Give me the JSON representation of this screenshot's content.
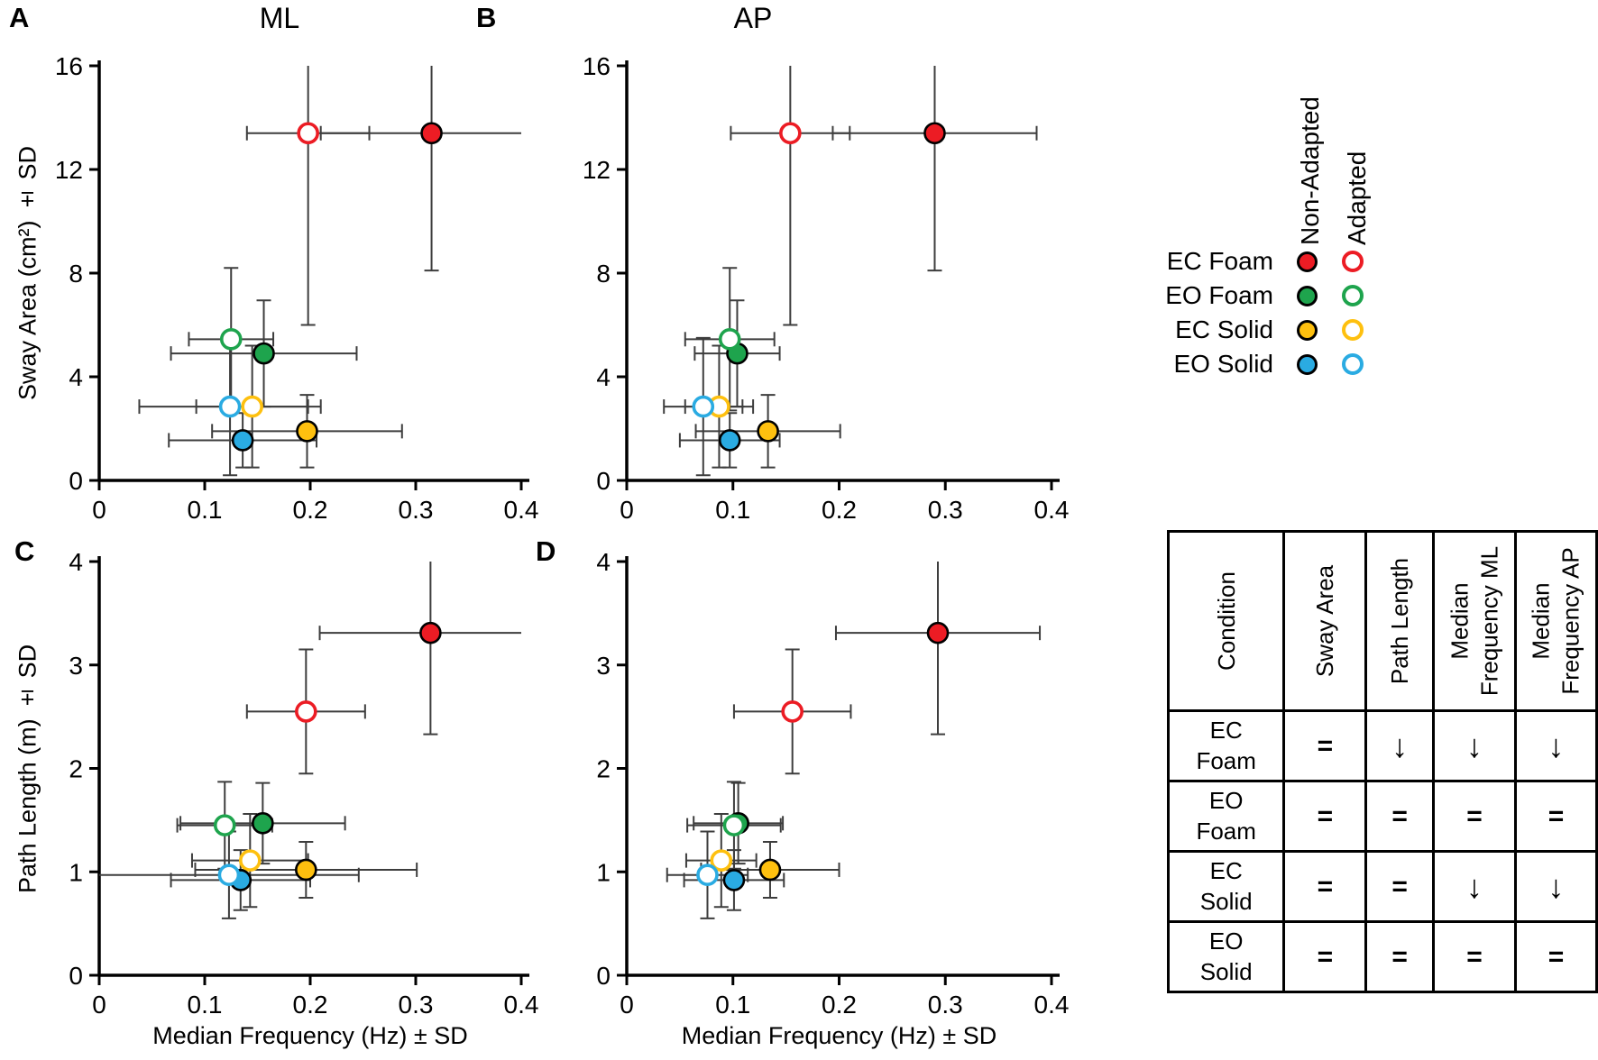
{
  "colors": {
    "error_bar": "#3d3d3d",
    "axis": "#000000",
    "marker_outline": "#000000"
  },
  "legend": {
    "column_headers": [
      "Non-Adapted",
      "Adapted"
    ],
    "rows": [
      {
        "label": "EC Foam",
        "color": "#ec1c24"
      },
      {
        "label": "EO Foam",
        "color": "#1ea44d"
      },
      {
        "label": "EC Solid",
        "color": "#fec00f"
      },
      {
        "label": "EO Solid",
        "color": "#2aabe2"
      }
    ]
  },
  "table": {
    "headers": [
      "Condition",
      "Sway Area",
      "Path Length",
      "Median Frequency ML",
      "Median Frequency AP"
    ],
    "rows": [
      {
        "condition": "EC\nFoam",
        "cells": [
          "=",
          "↓",
          "↓",
          "↓"
        ]
      },
      {
        "condition": "EO\nFoam",
        "cells": [
          "=",
          "=",
          "=",
          "="
        ]
      },
      {
        "condition": "EC\nSolid",
        "cells": [
          "=",
          "=",
          "↓",
          "↓"
        ]
      },
      {
        "condition": "EO\nSolid",
        "cells": [
          "=",
          "=",
          "=",
          "="
        ]
      }
    ]
  },
  "chart_data": [
    {
      "id": "A",
      "panel_label": "A",
      "type": "scatter",
      "title": "ML",
      "xlabel": "",
      "ylabel": "Sway Area (cm²) ± SD",
      "xlim": [
        0,
        0.4
      ],
      "ylim": [
        0,
        16
      ],
      "x_ticks": [
        0,
        0.1,
        0.2,
        0.3,
        0.4
      ],
      "x_tick_labels": [
        "0",
        "0.1",
        "0.2",
        "0.3",
        "0.4"
      ],
      "y_ticks": [
        0,
        4,
        8,
        12,
        16
      ],
      "y_tick_labels": [
        "0",
        "4",
        "8",
        "12",
        "16"
      ],
      "grid": false,
      "series": [
        {
          "condition": "EC Foam",
          "state": "non-adapted",
          "x": 0.315,
          "y": 13.4,
          "x_sd": 0.105,
          "y_sd": 5.3
        },
        {
          "condition": "EC Foam",
          "state": "adapted",
          "x": 0.198,
          "y": 13.4,
          "x_sd": 0.058,
          "y_sd": 7.4
        },
        {
          "condition": "EO Foam",
          "state": "non-adapted",
          "x": 0.156,
          "y": 4.9,
          "x_sd": 0.088,
          "y_sd": 2.05
        },
        {
          "condition": "EO Foam",
          "state": "adapted",
          "x": 0.125,
          "y": 5.45,
          "x_sd": 0.04,
          "y_sd": 2.75
        },
        {
          "condition": "EC Solid",
          "state": "non-adapted",
          "x": 0.197,
          "y": 1.9,
          "x_sd": 0.09,
          "y_sd": 1.4
        },
        {
          "condition": "EC Solid",
          "state": "adapted",
          "x": 0.145,
          "y": 2.85,
          "x_sd": 0.053,
          "y_sd": 2.35
        },
        {
          "condition": "EO Solid",
          "state": "non-adapted",
          "x": 0.136,
          "y": 1.55,
          "x_sd": 0.07,
          "y_sd": 1.05
        },
        {
          "condition": "EO Solid",
          "state": "adapted",
          "x": 0.124,
          "y": 2.85,
          "x_sd": 0.086,
          "y_sd": 2.65
        }
      ]
    },
    {
      "id": "B",
      "panel_label": "B",
      "type": "scatter",
      "title": "AP",
      "xlabel": "",
      "ylabel": "",
      "xlim": [
        0,
        0.4
      ],
      "ylim": [
        0,
        16
      ],
      "x_ticks": [
        0,
        0.1,
        0.2,
        0.3,
        0.4
      ],
      "x_tick_labels": [
        "0",
        "0.1",
        "0.2",
        "0.3",
        "0.4"
      ],
      "y_ticks": [
        0,
        4,
        8,
        12,
        16
      ],
      "y_tick_labels": [
        "0",
        "4",
        "8",
        "12",
        "16"
      ],
      "grid": false,
      "series": [
        {
          "condition": "EC Foam",
          "state": "non-adapted",
          "x": 0.29,
          "y": 13.4,
          "x_sd": 0.096,
          "y_sd": 5.3
        },
        {
          "condition": "EC Foam",
          "state": "adapted",
          "x": 0.154,
          "y": 13.4,
          "x_sd": 0.056,
          "y_sd": 7.4
        },
        {
          "condition": "EO Foam",
          "state": "non-adapted",
          "x": 0.104,
          "y": 4.9,
          "x_sd": 0.04,
          "y_sd": 2.05
        },
        {
          "condition": "EO Foam",
          "state": "adapted",
          "x": 0.097,
          "y": 5.45,
          "x_sd": 0.042,
          "y_sd": 2.75
        },
        {
          "condition": "EC Solid",
          "state": "non-adapted",
          "x": 0.133,
          "y": 1.9,
          "x_sd": 0.068,
          "y_sd": 1.4
        },
        {
          "condition": "EC Solid",
          "state": "adapted",
          "x": 0.087,
          "y": 2.85,
          "x_sd": 0.032,
          "y_sd": 2.35
        },
        {
          "condition": "EO Solid",
          "state": "non-adapted",
          "x": 0.097,
          "y": 1.55,
          "x_sd": 0.047,
          "y_sd": 1.05
        },
        {
          "condition": "EO Solid",
          "state": "adapted",
          "x": 0.072,
          "y": 2.85,
          "x_sd": 0.037,
          "y_sd": 2.65
        }
      ]
    },
    {
      "id": "C",
      "panel_label": "C",
      "type": "scatter",
      "title": "",
      "xlabel": "Median Frequency (Hz) ± SD",
      "ylabel": "Path Length (m) ± SD",
      "xlim": [
        0,
        0.4
      ],
      "ylim": [
        0,
        4
      ],
      "x_ticks": [
        0,
        0.1,
        0.2,
        0.3,
        0.4
      ],
      "x_tick_labels": [
        "0",
        "0.1",
        "0.2",
        "0.3",
        "0.4"
      ],
      "y_ticks": [
        0,
        1,
        2,
        3,
        4
      ],
      "y_tick_labels": [
        "0",
        "1",
        "2",
        "3",
        "4"
      ],
      "grid": false,
      "series": [
        {
          "condition": "EC Foam",
          "state": "non-adapted",
          "x": 0.314,
          "y": 3.31,
          "x_sd": 0.105,
          "y_sd": 0.98
        },
        {
          "condition": "EC Foam",
          "state": "adapted",
          "x": 0.196,
          "y": 2.55,
          "x_sd": 0.056,
          "y_sd": 0.6
        },
        {
          "condition": "EO Foam",
          "state": "non-adapted",
          "x": 0.155,
          "y": 1.47,
          "x_sd": 0.078,
          "y_sd": 0.39
        },
        {
          "condition": "EO Foam",
          "state": "adapted",
          "x": 0.119,
          "y": 1.45,
          "x_sd": 0.045,
          "y_sd": 0.42
        },
        {
          "condition": "EC Solid",
          "state": "non-adapted",
          "x": 0.196,
          "y": 1.02,
          "x_sd": 0.105,
          "y_sd": 0.27
        },
        {
          "condition": "EC Solid",
          "state": "adapted",
          "x": 0.143,
          "y": 1.11,
          "x_sd": 0.055,
          "y_sd": 0.45
        },
        {
          "condition": "EO Solid",
          "state": "non-adapted",
          "x": 0.134,
          "y": 0.92,
          "x_sd": 0.066,
          "y_sd": 0.29
        },
        {
          "condition": "EO Solid",
          "state": "adapted",
          "x": 0.123,
          "y": 0.97,
          "x_sd": 0.123,
          "y_sd": 0.42
        }
      ]
    },
    {
      "id": "D",
      "panel_label": "D",
      "type": "scatter",
      "title": "",
      "xlabel": "Median Frequency (Hz) ± SD",
      "ylabel": "",
      "xlim": [
        0,
        0.4
      ],
      "ylim": [
        0,
        4
      ],
      "x_ticks": [
        0,
        0.1,
        0.2,
        0.3,
        0.4
      ],
      "x_tick_labels": [
        "0",
        "0.1",
        "0.2",
        "0.3",
        "0.4"
      ],
      "y_ticks": [
        0,
        1,
        2,
        3,
        4
      ],
      "y_tick_labels": [
        "0",
        "1",
        "2",
        "3",
        "4"
      ],
      "grid": false,
      "series": [
        {
          "condition": "EC Foam",
          "state": "non-adapted",
          "x": 0.293,
          "y": 3.31,
          "x_sd": 0.096,
          "y_sd": 0.98
        },
        {
          "condition": "EC Foam",
          "state": "adapted",
          "x": 0.156,
          "y": 2.55,
          "x_sd": 0.055,
          "y_sd": 0.6
        },
        {
          "condition": "EO Foam",
          "state": "non-adapted",
          "x": 0.105,
          "y": 1.47,
          "x_sd": 0.042,
          "y_sd": 0.39
        },
        {
          "condition": "EO Foam",
          "state": "adapted",
          "x": 0.101,
          "y": 1.45,
          "x_sd": 0.044,
          "y_sd": 0.42
        },
        {
          "condition": "EC Solid",
          "state": "non-adapted",
          "x": 0.135,
          "y": 1.02,
          "x_sd": 0.065,
          "y_sd": 0.27
        },
        {
          "condition": "EC Solid",
          "state": "adapted",
          "x": 0.089,
          "y": 1.11,
          "x_sd": 0.033,
          "y_sd": 0.45
        },
        {
          "condition": "EO Solid",
          "state": "non-adapted",
          "x": 0.101,
          "y": 0.92,
          "x_sd": 0.047,
          "y_sd": 0.29
        },
        {
          "condition": "EO Solid",
          "state": "adapted",
          "x": 0.076,
          "y": 0.97,
          "x_sd": 0.038,
          "y_sd": 0.42
        }
      ]
    }
  ]
}
